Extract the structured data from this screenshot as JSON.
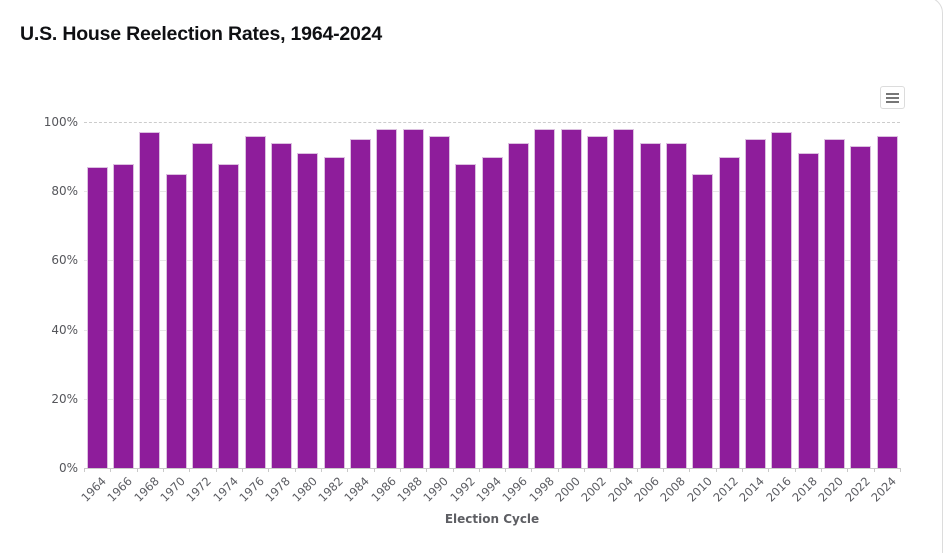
{
  "page": {
    "title": "U.S. House Reelection Rates, 1964-2024"
  },
  "toolbar": {
    "menu_icon": "hamburger-menu-icon"
  },
  "colors": {
    "bar_fill": "#8e1d9b",
    "bar_border": "#dcc0e0",
    "gridline": "#e7e7e7",
    "gridline_100_dashed": "#cccccc",
    "axis_label": "#55565b",
    "title_text": "#0f1013"
  },
  "chart_data": {
    "type": "bar",
    "title": "U.S. House Reelection Rates, 1964-2024",
    "xlabel": "Election Cycle",
    "ylabel": "",
    "ylim": [
      0,
      100
    ],
    "ytick_labels": [
      "100%",
      "80%",
      "60%",
      "40%",
      "20%",
      "0%"
    ],
    "grid": true,
    "legend": "none",
    "categories": [
      "1964",
      "1966",
      "1968",
      "1970",
      "1972",
      "1974",
      "1976",
      "1978",
      "1980",
      "1982",
      "1984",
      "1986",
      "1988",
      "1990",
      "1992",
      "1994",
      "1996",
      "1998",
      "2000",
      "2002",
      "2004",
      "2006",
      "2008",
      "2010",
      "2012",
      "2014",
      "2016",
      "2018",
      "2020",
      "2022",
      "2024"
    ],
    "values": [
      87,
      88,
      97,
      85,
      94,
      88,
      96,
      94,
      91,
      90,
      95,
      98,
      98,
      96,
      88,
      90,
      94,
      98,
      98,
      96,
      98,
      94,
      94,
      85,
      90,
      95,
      97,
      91,
      95,
      93,
      96
    ]
  }
}
